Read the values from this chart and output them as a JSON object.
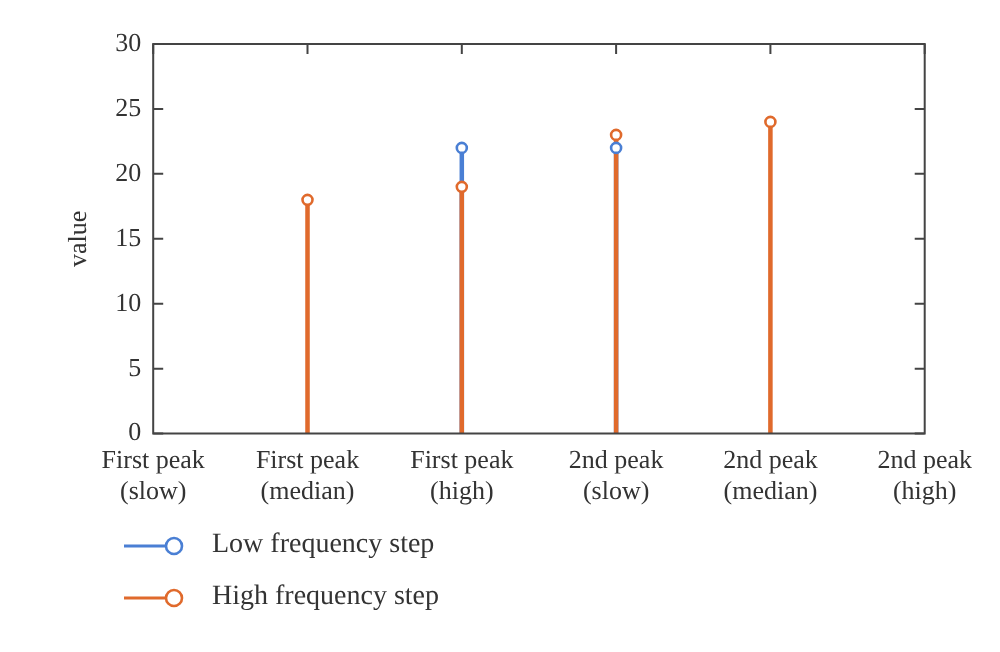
{
  "chart_data": {
    "type": "lollipop",
    "ylabel": "value",
    "categories": [
      "First peak\n(slow)",
      "First peak\n(median)",
      "First peak\n(high)",
      "2nd peak\n(slow)",
      "2nd peak\n(median)",
      "2nd peak\n(high)"
    ],
    "series": [
      {
        "name": "Low frequency step",
        "color": "#4a7fd4",
        "values": [
          null,
          null,
          22,
          22,
          null,
          null
        ]
      },
      {
        "name": "High frequency step",
        "color": "#e06a2c",
        "values": [
          null,
          18,
          19,
          23,
          24,
          null
        ]
      }
    ],
    "ylim": [
      0,
      30
    ],
    "yticks": [
      0,
      5,
      10,
      15,
      20,
      25,
      30
    ],
    "grid": false,
    "legend": "bottom left",
    "marker": "circle"
  }
}
